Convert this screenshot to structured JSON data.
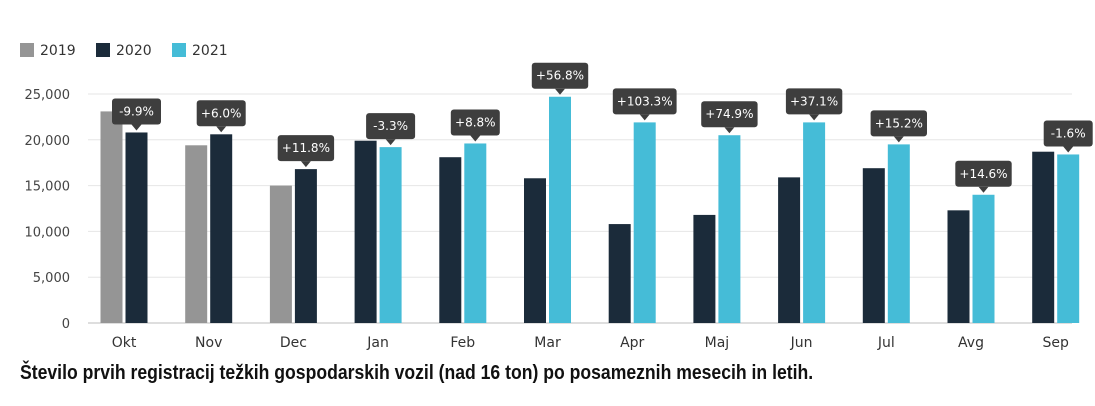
{
  "chart_data": {
    "type": "bar",
    "categories": [
      "Okt",
      "Nov",
      "Dec",
      "Jan",
      "Feb",
      "Mar",
      "Apr",
      "Maj",
      "Jun",
      "Jul",
      "Avg",
      "Sep"
    ],
    "series": [
      {
        "name": "2019",
        "color": "#959595",
        "values": [
          23100,
          19400,
          15000,
          null,
          null,
          null,
          null,
          null,
          null,
          null,
          null,
          null
        ]
      },
      {
        "name": "2020",
        "color": "#1b2b3a",
        "values": [
          20800,
          20600,
          16800,
          19900,
          18100,
          15800,
          10800,
          11800,
          15900,
          16900,
          12300,
          18700
        ]
      },
      {
        "name": "2021",
        "color": "#45bcd7",
        "values": [
          null,
          null,
          null,
          19200,
          19600,
          24700,
          21900,
          20500,
          21900,
          19500,
          14000,
          18400
        ]
      }
    ],
    "changes": [
      "-9.9%",
      "+6.0%",
      "+11.8%",
      "-3.3%",
      "+8.8%",
      "+56.8%",
      "+103.3%",
      "+74.9%",
      "+37.1%",
      "+15.2%",
      "+14.6%",
      "-1.6%"
    ],
    "ylim": [
      0,
      25000
    ],
    "yticks": [
      0,
      5000,
      10000,
      15000,
      20000,
      25000
    ],
    "ytick_labels": [
      "0",
      "5,000",
      "10,000",
      "15,000",
      "20,000",
      "25,000"
    ],
    "legend_position": "top-left",
    "grid": "horizontal",
    "callout_color": "#3e3e3e"
  },
  "caption": "Število prvih registracij težkih gospodarskih vozil (nad 16 ton) po posameznih mesecih in letih."
}
